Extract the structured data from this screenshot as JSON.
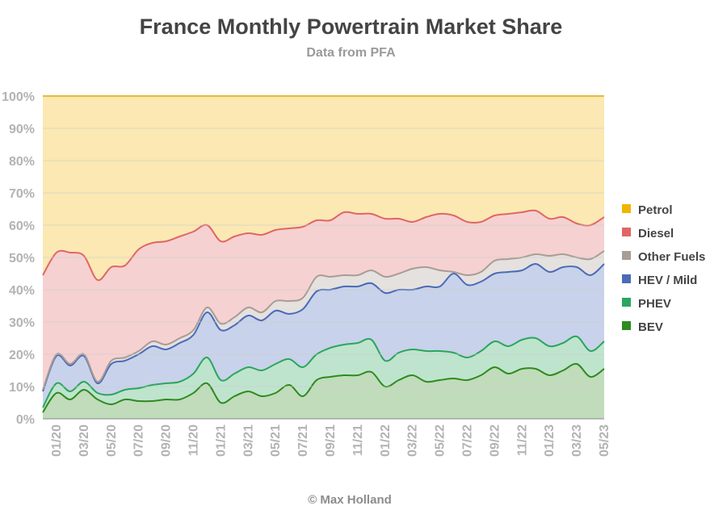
{
  "header": {
    "title": "France Monthly Powertrain Market Share",
    "subtitle": "Data from PFA"
  },
  "footer": {
    "credit": "© Max Holland"
  },
  "chart_data": {
    "type": "area",
    "stacked": true,
    "title": "France Monthly Powertrain Market Share",
    "subtitle": "Data from PFA",
    "ylim": [
      0,
      100
    ],
    "y_ticks": [
      "0%",
      "10%",
      "20%",
      "30%",
      "40%",
      "50%",
      "60%",
      "70%",
      "80%",
      "90%",
      "100%"
    ],
    "x_tick_labels": [
      "01/20",
      "03/20",
      "05/20",
      "07/20",
      "09/20",
      "11/20",
      "01/21",
      "03/21",
      "05/21",
      "07/21",
      "09/21",
      "11/21",
      "01/22",
      "03/22",
      "05/22",
      "07/22",
      "09/22",
      "11/22",
      "01/23",
      "03/23",
      "05/23"
    ],
    "grid": true,
    "legend_position": "right",
    "x": [
      "12/19",
      "01/20",
      "02/20",
      "03/20",
      "04/20",
      "05/20",
      "06/20",
      "07/20",
      "08/20",
      "09/20",
      "10/20",
      "11/20",
      "12/20",
      "01/21",
      "02/21",
      "03/21",
      "04/21",
      "05/21",
      "06/21",
      "07/21",
      "08/21",
      "09/21",
      "10/21",
      "11/21",
      "12/21",
      "01/22",
      "02/22",
      "03/22",
      "04/22",
      "05/22",
      "06/22",
      "07/22",
      "08/22",
      "09/22",
      "10/22",
      "11/22",
      "12/22",
      "01/23",
      "02/23",
      "03/23",
      "04/23",
      "05/23"
    ],
    "series": [
      {
        "name": "BEV",
        "color": "#2e8b1e",
        "values": [
          2,
          8,
          6,
          9,
          6,
          4.5,
          6,
          5.5,
          5.5,
          6,
          6,
          8,
          11,
          5,
          7,
          8.5,
          7,
          8,
          10.5,
          7,
          12,
          13,
          13.5,
          13.5,
          14.5,
          10,
          12,
          13.5,
          11.5,
          12,
          12.5,
          12,
          13.5,
          16,
          14,
          15.5,
          15.5,
          13.5,
          15,
          17,
          13,
          15.5
        ]
      },
      {
        "name": "PHEV",
        "color": "#2aa65e",
        "values": [
          1.5,
          3,
          2.5,
          2.5,
          2,
          3,
          3,
          4,
          5,
          5,
          5.5,
          6,
          8,
          7,
          7,
          7.5,
          8,
          9,
          8,
          9,
          8,
          9,
          9.5,
          10,
          10,
          8,
          8.5,
          8,
          9.5,
          9,
          8,
          7,
          7.5,
          8,
          8.5,
          9,
          9.5,
          9,
          8.5,
          8.5,
          8,
          8.5
        ]
      },
      {
        "name": "HEV / Mild",
        "color": "#4a6bb8",
        "values": [
          5,
          8.5,
          8,
          8,
          3,
          9.5,
          9,
          10.5,
          12,
          10.5,
          12,
          12,
          14,
          15.5,
          15,
          16,
          15.5,
          16.5,
          14,
          18,
          19.5,
          18,
          18,
          17.5,
          17.5,
          21,
          19.5,
          18.5,
          20,
          20,
          24.5,
          22.5,
          21.5,
          21,
          23,
          21.5,
          23,
          23,
          23.5,
          21.5,
          23.5,
          24
        ]
      },
      {
        "name": "Other Fuels",
        "color": "#a89c96",
        "values": [
          0.5,
          0.5,
          0.5,
          0.5,
          0.5,
          1,
          1,
          1,
          1.5,
          1.5,
          1.5,
          1.5,
          1.5,
          2,
          2.5,
          2.5,
          2.5,
          3,
          4,
          3.5,
          4.5,
          4,
          3.5,
          3.5,
          4,
          5,
          5,
          6.5,
          6,
          5,
          0.5,
          3,
          3,
          4,
          4,
          4,
          3,
          5,
          4,
          3,
          5,
          4
        ]
      },
      {
        "name": "Diesel",
        "color": "#e06666",
        "values": [
          35.5,
          31.5,
          34.5,
          30.5,
          31.5,
          29,
          28.5,
          31.5,
          30.5,
          32,
          31.5,
          30.5,
          25.5,
          25.5,
          25,
          23,
          24,
          22,
          22.5,
          22,
          17.5,
          17.5,
          19.5,
          19,
          17.5,
          18,
          17,
          14.5,
          15.5,
          17.5,
          17.5,
          16.5,
          15.5,
          14,
          14,
          14,
          13.5,
          11.5,
          11.5,
          10.5,
          10.5,
          10.5
        ]
      },
      {
        "name": "Petrol",
        "color": "#f1b400",
        "values": [
          55.5,
          48.5,
          48.5,
          49.5,
          57,
          53,
          52.5,
          47.5,
          45.5,
          45,
          43.5,
          42,
          40,
          45,
          43.5,
          42.5,
          43,
          41.5,
          41,
          40.5,
          38.5,
          38.5,
          36,
          36.5,
          36.5,
          38,
          38,
          39,
          37.5,
          36.5,
          37,
          39,
          39,
          37,
          36.5,
          36,
          35.5,
          38,
          37.5,
          39.5,
          40,
          37.5
        ]
      }
    ]
  }
}
